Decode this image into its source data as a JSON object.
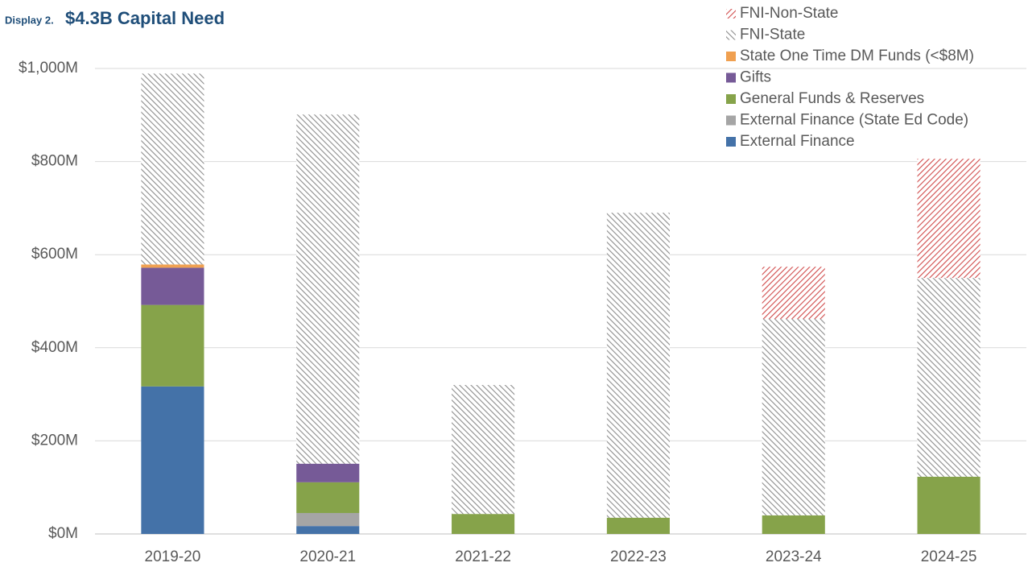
{
  "chart_data": {
    "type": "stacked_bar",
    "display_label": "Display 2.",
    "title": "$4.3B Capital Need",
    "categories": [
      "2019-20",
      "2020-21",
      "2021-22",
      "2022-23",
      "2023-24",
      "2024-25"
    ],
    "series": [
      {
        "name": "External Finance",
        "color": "#4472a8",
        "pattern": "solid",
        "values": [
          317,
          17,
          null,
          null,
          null,
          null
        ]
      },
      {
        "name": "External Finance (State Ed Code)",
        "color": "#a5a5a5",
        "pattern": "solid",
        "values": [
          null,
          28,
          null,
          null,
          null,
          null
        ]
      },
      {
        "name": "General Funds & Reserves",
        "color": "#86a34a",
        "pattern": "solid",
        "values": [
          175,
          66,
          43,
          35,
          40,
          123
        ]
      },
      {
        "name": "Gifts",
        "color": "#765a97",
        "pattern": "solid",
        "values": [
          80,
          40,
          null,
          null,
          null,
          null
        ]
      },
      {
        "name": "State One Time DM Funds (<$8M)",
        "color": "#f0a050",
        "pattern": "solid",
        "values": [
          7,
          null,
          null,
          null,
          null,
          null
        ]
      },
      {
        "name": "FNI-State",
        "color": "#8c8c8c",
        "pattern": "hatch-back",
        "values": [
          410,
          750,
          277,
          655,
          422,
          427
        ]
      },
      {
        "name": "FNI-Non-State",
        "color": "#d04a4a",
        "pattern": "hatch-forward",
        "values": [
          null,
          null,
          null,
          null,
          112,
          256
        ]
      }
    ],
    "ylim": [
      0,
      1000
    ],
    "yticks": [
      {
        "value": 0,
        "label": "$0M"
      },
      {
        "value": 200,
        "label": "$200M"
      },
      {
        "value": 400,
        "label": "$400M"
      },
      {
        "value": 600,
        "label": "$600M"
      },
      {
        "value": 800,
        "label": "$800M"
      },
      {
        "value": 1000,
        "label": "$1,000M"
      }
    ],
    "grid": true,
    "legend": "top-right"
  }
}
